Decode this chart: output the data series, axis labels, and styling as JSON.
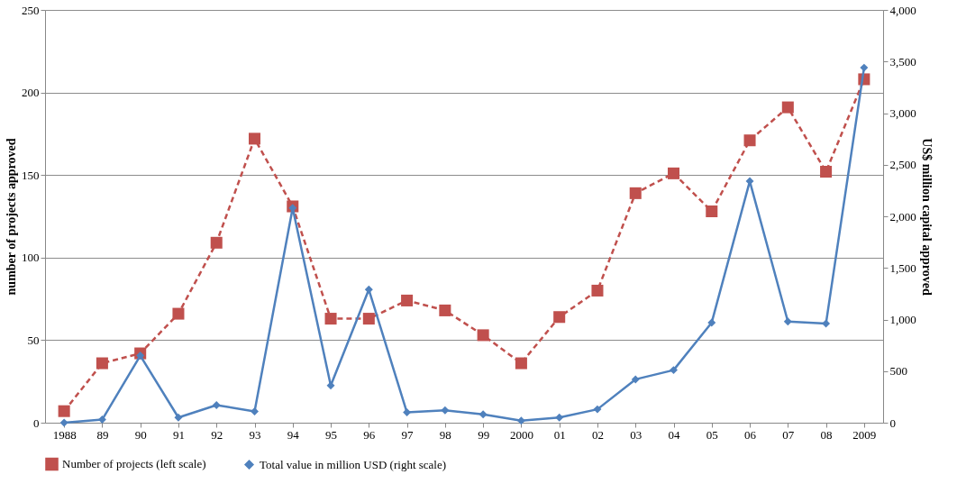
{
  "chart_data": {
    "type": "line",
    "ylabel": "number of projects approved",
    "y2label": "US$ million capital approved",
    "categories": [
      "1988",
      "89",
      "90",
      "91",
      "92",
      "93",
      "94",
      "95",
      "96",
      "97",
      "98",
      "99",
      "2000",
      "01",
      "02",
      "03",
      "04",
      "05",
      "06",
      "07",
      "08",
      "2009"
    ],
    "series": [
      {
        "name": "Number of projects (left scale)",
        "color": "#c0504d",
        "marker": "square",
        "line_style": "dashed",
        "values": [
          7,
          36,
          42,
          66,
          109,
          172,
          131,
          63,
          63,
          74,
          68,
          53,
          36,
          64,
          80,
          139,
          151,
          128,
          171,
          191,
          152,
          208
        ]
      },
      {
        "name": "Total value in million USD (right scale)",
        "color": "#4f81bd",
        "marker": "diamond",
        "line_style": "solid",
        "axis": "y2",
        "values": [
          0,
          30,
          650,
          50,
          170,
          110,
          2080,
          360,
          1290,
          100,
          120,
          80,
          20,
          50,
          130,
          420,
          510,
          970,
          2340,
          980,
          960,
          3440
        ]
      }
    ],
    "ylim": [
      0,
      250
    ],
    "yticks": [
      0,
      50,
      100,
      150,
      200,
      250
    ],
    "y2lim": [
      0,
      4000
    ],
    "y2ticks": [
      0,
      {
        "value": 500,
        "label": "500"
      },
      {
        "value": 1000,
        "label": "1,000"
      },
      {
        "value": 1500,
        "label": "1,500"
      },
      {
        "value": 2000,
        "label": "2,000"
      },
      {
        "value": 2500,
        "label": "2,500"
      },
      {
        "value": 3000,
        "label": "3,000"
      },
      {
        "value": 3500,
        "label": "3,500"
      },
      {
        "value": 4000,
        "label": "4,000"
      }
    ],
    "grid": "y",
    "legend": "bottom"
  }
}
